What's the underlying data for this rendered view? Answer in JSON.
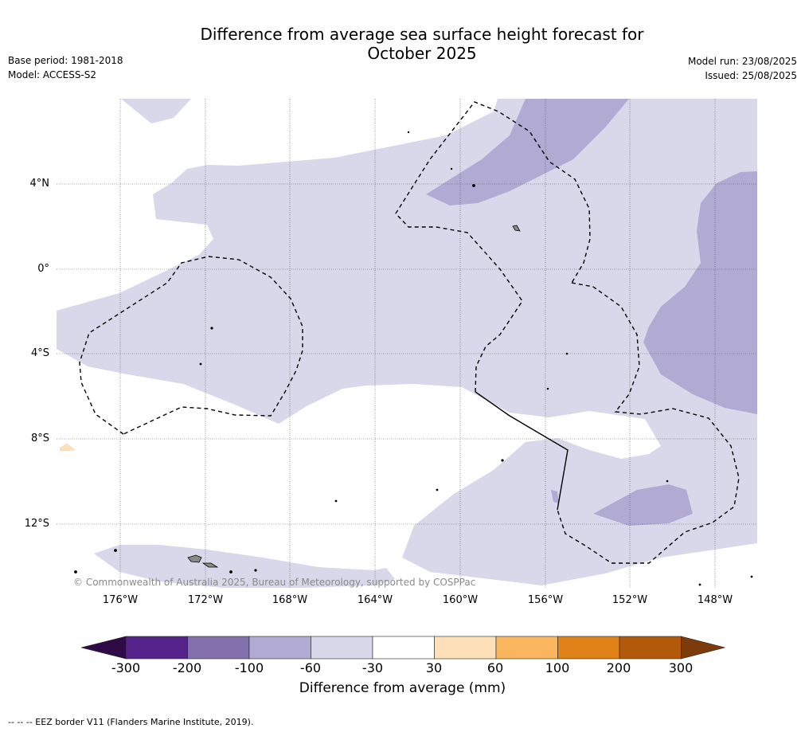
{
  "title_line1": "Difference from average sea surface height forecast for",
  "title_line2": "October 2025",
  "meta_left": {
    "base_period": "Base period: 1981-2018",
    "model": "Model: ACCESS-S2"
  },
  "meta_right": {
    "model_run": "Model run: 23/08/2025",
    "issued": "Issued: 25/08/2025"
  },
  "credit": "© Commonwealth of Australia 2025, Bureau of Meteorology, supported by COSPPac",
  "lat_labels": [
    "4°N",
    "0°",
    "4°S",
    "8°S",
    "12°S"
  ],
  "lon_labels": [
    "176°W",
    "172°W",
    "168°W",
    "164°W",
    "160°W",
    "156°W",
    "152°W",
    "148°W"
  ],
  "colorbar": {
    "ticks": [
      "-300",
      "-200",
      "-100",
      "-60",
      "-30",
      "30",
      "60",
      "100",
      "200",
      "300"
    ],
    "colors": [
      "#2e0a47",
      "#56238a",
      "#8271ad",
      "#b1abd3",
      "#d8d8ea",
      "#ffffff",
      "#fee0b8",
      "#f9b65f",
      "#e08218",
      "#b3590a",
      "#7d3a0a"
    ],
    "title": "Difference from average (mm)"
  },
  "footnote": "-- -- -- EEZ border V11 (Flanders Marine Institute, 2019).",
  "chart_data": {
    "type": "heatmap",
    "title": "Difference from average sea surface height forecast for October 2025",
    "xlabel": "",
    "ylabel": "",
    "x_range": [
      "178°W",
      "146°W"
    ],
    "y_range": [
      "15°S",
      "8°N"
    ],
    "legend_title": "Difference from average (mm)",
    "legend_bins": [
      "-300",
      "-200",
      "-100",
      "-60",
      "-30",
      "30",
      "60",
      "100",
      "200",
      "300"
    ],
    "grid": true
  }
}
